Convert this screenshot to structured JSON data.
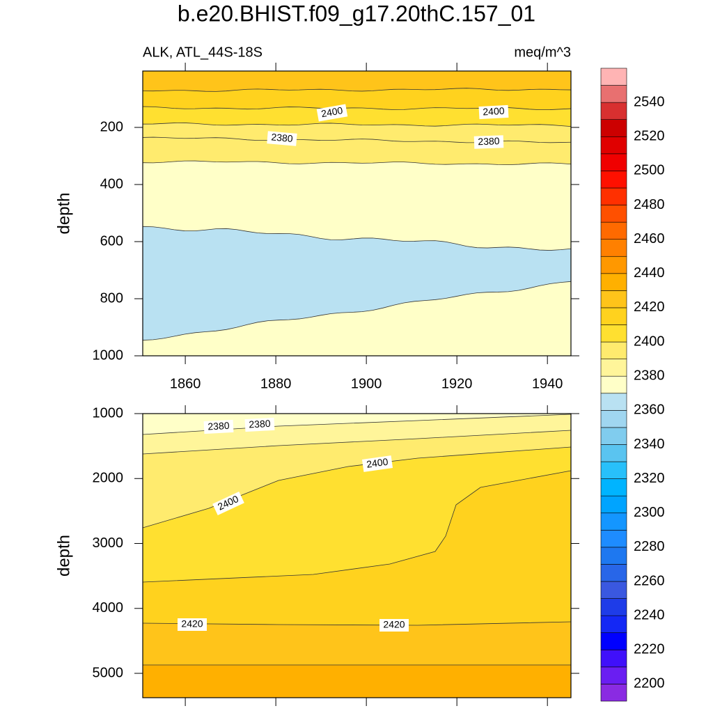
{
  "chart_data": [
    {
      "type": "contour",
      "title": "b.e20.BHIST.f09_g17.20thC.157_01",
      "left_string": "ALK, ATL_44S-18S",
      "right_string": "meq/m^3",
      "y_label": "depth",
      "xlim": [
        1850.6,
        1945.2
      ],
      "xticks": [
        1860,
        1880,
        1900,
        1920,
        1940
      ],
      "ylim": [
        2.5,
        1000
      ],
      "yticks": [
        200,
        400,
        600,
        800,
        1000
      ],
      "y_reversed": true,
      "contour_labels": [
        2400,
        2400,
        2380,
        2380
      ]
    },
    {
      "type": "contour",
      "y_label": "depth",
      "xlim": [
        1850.6,
        1945.2
      ],
      "xticks": [
        1860,
        1880,
        1900,
        1920,
        1940
      ],
      "ylim": [
        1000,
        5375
      ],
      "yticks": [
        1000,
        2000,
        3000,
        4000,
        5000
      ],
      "y_reversed": true,
      "contour_labels": [
        2380,
        2380,
        2400,
        2400,
        2420,
        2420
      ]
    },
    {
      "type": "colorbar",
      "levels": [
        2200,
        2210,
        2220,
        2230,
        2240,
        2250,
        2260,
        2270,
        2280,
        2290,
        2300,
        2310,
        2320,
        2330,
        2340,
        2350,
        2360,
        2370,
        2380,
        2390,
        2400,
        2410,
        2420,
        2430,
        2440,
        2450,
        2460,
        2470,
        2480,
        2490,
        2500,
        2510,
        2520,
        2530,
        2540,
        2550
      ],
      "colors": [
        "#8a2be2",
        "#6a1ef2",
        "#4010fa",
        "#0000ff",
        "#1428f5",
        "#1e3ce8",
        "#3a58e0",
        "#2866e8",
        "#1e78f0",
        "#1e8cff",
        "#1496ff",
        "#00a4ff",
        "#00b4ff",
        "#28c0fa",
        "#5ac4f0",
        "#80ccee",
        "#a0d6f0",
        "#b9e1f2",
        "#ffffc8",
        "#fff59a",
        "#ffeb6e",
        "#ffe030",
        "#ffd21e",
        "#ffc41a",
        "#ffb000",
        "#ff9800",
        "#ff8000",
        "#ff6a00",
        "#ff5000",
        "#ff3000",
        "#ff1000",
        "#f00000",
        "#e00000",
        "#cc0000",
        "#d83030",
        "#e87070",
        "#ffb4b4"
      ],
      "ticks": [
        2200,
        2220,
        2240,
        2260,
        2280,
        2300,
        2320,
        2340,
        2360,
        2380,
        2400,
        2420,
        2440,
        2460,
        2480,
        2500,
        2520,
        2540
      ]
    }
  ]
}
